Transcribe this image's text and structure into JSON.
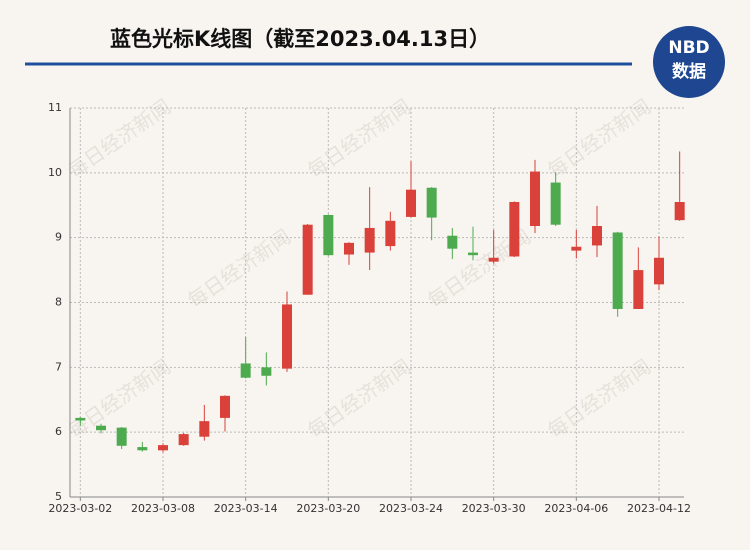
{
  "chart_data": {
    "type": "candlestick",
    "title": "蓝色光标K线图（截至2023.04.13日）",
    "logo": [
      "NBD",
      "数据"
    ],
    "watermark": "每日经济新闻",
    "categories": [
      "2023-03-02",
      null,
      null,
      null,
      "2023-03-08",
      null,
      null,
      null,
      "2023-03-14",
      null,
      null,
      null,
      "2023-03-20",
      null,
      null,
      null,
      "2023-03-24",
      null,
      null,
      null,
      "2023-03-30",
      null,
      null,
      null,
      "2023-04-06",
      null,
      null,
      null,
      "2023-04-12",
      null
    ],
    "series": [
      {
        "open": [
          6.22,
          6.1,
          6.07,
          5.77,
          5.72,
          5.8,
          5.93,
          6.22,
          7.06,
          7.0,
          6.98,
          8.12,
          9.35,
          8.74,
          8.77,
          8.87,
          9.32,
          9.77,
          9.03,
          8.77,
          8.63,
          8.71,
          9.18,
          9.85,
          8.8,
          8.88,
          9.08,
          7.9,
          8.28,
          9.27
        ],
        "high": [
          6.23,
          6.13,
          6.08,
          5.85,
          5.83,
          5.99,
          6.42,
          6.57,
          7.47,
          7.23,
          8.17,
          9.21,
          9.36,
          8.93,
          9.78,
          9.4,
          10.18,
          9.78,
          9.15,
          9.17,
          9.12,
          9.56,
          10.2,
          10.01,
          9.12,
          9.49,
          9.09,
          8.85,
          9.02,
          10.33
        ],
        "low": [
          6.1,
          5.98,
          5.74,
          5.7,
          5.69,
          5.79,
          5.87,
          6.01,
          6.83,
          6.72,
          6.93,
          8.12,
          8.72,
          8.58,
          8.5,
          8.8,
          9.31,
          8.96,
          8.67,
          8.65,
          8.6,
          8.7,
          9.07,
          9.18,
          8.68,
          8.7,
          7.78,
          7.9,
          8.19,
          9.26
        ],
        "close": [
          6.18,
          6.03,
          5.79,
          5.72,
          5.8,
          5.97,
          6.17,
          6.56,
          6.84,
          6.87,
          7.97,
          9.2,
          8.73,
          8.92,
          9.15,
          9.26,
          9.74,
          9.31,
          8.83,
          8.73,
          8.69,
          9.55,
          10.02,
          9.2,
          8.86,
          9.18,
          7.9,
          8.5,
          8.69,
          9.55
        ]
      }
    ],
    "up_color": "#d9413a",
    "down_color": "#4daa4f",
    "ylim": [
      5,
      11
    ],
    "yticks": [
      5,
      6,
      7,
      8,
      9,
      10,
      11
    ],
    "grid": true
  }
}
